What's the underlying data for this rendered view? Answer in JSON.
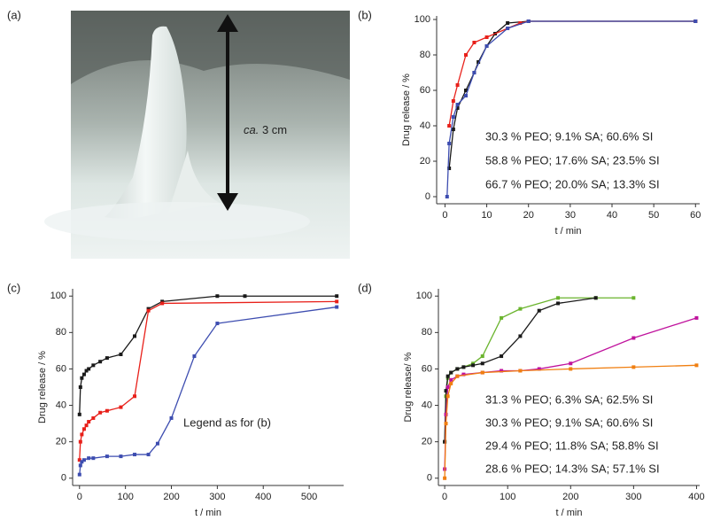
{
  "photo": {
    "label": "(a)",
    "annotation_italic": "ca.",
    "annotation": "3 cm"
  },
  "chart_data": [
    {
      "type": "line",
      "label": "(b)",
      "xlabel": "t / min",
      "ylabel": "Drug release / %",
      "xlim": [
        -2,
        61
      ],
      "ylim": [
        -4,
        102
      ],
      "xticks": [
        0,
        10,
        20,
        30,
        40,
        50,
        60
      ],
      "yticks": [
        0,
        20,
        40,
        60,
        80,
        100
      ],
      "series": [
        {
          "name": "30.3 % PEO; 9.1% SA; 60.6% SI",
          "color": "#1a1a1a",
          "x": [
            1,
            2,
            3,
            5,
            7,
            8,
            10,
            12,
            15,
            20,
            60
          ],
          "values": [
            16,
            38,
            50,
            60,
            70,
            76,
            85,
            92,
            98,
            99,
            99
          ]
        },
        {
          "name": "58.8 % PEO; 17.6% SA; 23.5% SI",
          "color": "#e8201a",
          "x": [
            1,
            2,
            3,
            5,
            7,
            10,
            15,
            18,
            20,
            60
          ],
          "values": [
            40,
            54,
            63,
            80,
            87,
            90,
            95,
            98,
            99,
            99
          ]
        },
        {
          "name": "66.7 % PEO; 20.0% SA; 13.3% SI",
          "color": "#3d4db0",
          "x": [
            0.5,
            1,
            2,
            3,
            5,
            7,
            10,
            15,
            20,
            60
          ],
          "values": [
            0,
            30,
            45,
            52,
            57,
            70,
            85,
            95,
            99,
            99
          ]
        }
      ]
    },
    {
      "type": "line",
      "label": "(c)",
      "xlabel": "t / min",
      "ylabel": "Drug release / %",
      "annotation": "Legend as for (b)",
      "xlim": [
        -15,
        575
      ],
      "ylim": [
        -4,
        104
      ],
      "xticks": [
        0,
        100,
        200,
        300,
        400,
        500
      ],
      "yticks": [
        0,
        20,
        40,
        60,
        80,
        100
      ],
      "series": [
        {
          "color": "#1a1a1a",
          "x": [
            0,
            2,
            5,
            10,
            15,
            20,
            30,
            45,
            60,
            90,
            120,
            150,
            180,
            300,
            360,
            560
          ],
          "values": [
            35,
            50,
            55,
            57,
            59,
            60,
            62,
            64,
            66,
            68,
            78,
            93,
            97,
            100,
            100,
            100
          ]
        },
        {
          "color": "#e8201a",
          "x": [
            0,
            2,
            5,
            10,
            15,
            20,
            30,
            45,
            60,
            90,
            120,
            150,
            180,
            560
          ],
          "values": [
            10,
            20,
            24,
            27,
            29,
            31,
            33,
            36,
            37,
            39,
            45,
            92,
            96,
            97
          ]
        },
        {
          "color": "#3d4db0",
          "x": [
            0,
            2,
            5,
            10,
            20,
            30,
            60,
            90,
            120,
            150,
            170,
            200,
            250,
            300,
            560
          ],
          "values": [
            2,
            7,
            9,
            10,
            11,
            11,
            12,
            12,
            13,
            13,
            19,
            33,
            67,
            85,
            94
          ]
        }
      ]
    },
    {
      "type": "line",
      "label": "(d)",
      "xlabel": "t / min",
      "ylabel": "Drug release/ %",
      "xlim": [
        -10,
        405
      ],
      "ylim": [
        -4,
        104
      ],
      "xticks": [
        0,
        100,
        200,
        300,
        400
      ],
      "yticks": [
        0,
        20,
        40,
        60,
        80,
        100
      ],
      "series": [
        {
          "name": "31.3 % PEO; 6.3% SA; 62.5% SI",
          "color": "#6ab42d",
          "x": [
            0,
            2,
            5,
            10,
            20,
            30,
            45,
            60,
            90,
            120,
            180,
            240,
            300
          ],
          "values": [
            20,
            45,
            55,
            58,
            60,
            61,
            63,
            67,
            88,
            93,
            99,
            99,
            99
          ]
        },
        {
          "name": "30.3 % PEO; 9.1% SA; 60.6% SI",
          "color": "#1a1a1a",
          "x": [
            0,
            2,
            5,
            10,
            20,
            30,
            45,
            60,
            90,
            120,
            150,
            180,
            240
          ],
          "values": [
            20,
            48,
            56,
            58,
            60,
            61,
            62,
            63,
            67,
            78,
            92,
            96,
            99
          ]
        },
        {
          "name": "29.4 % PEO; 11.8% SA; 58.8% SI",
          "color": "#c0139d",
          "x": [
            0,
            2,
            5,
            10,
            20,
            30,
            60,
            90,
            120,
            150,
            200,
            300,
            400
          ],
          "values": [
            5,
            35,
            50,
            54,
            56,
            57,
            58,
            59,
            59,
            60,
            63,
            77,
            88
          ]
        },
        {
          "name": "28.6 % PEO; 14.3% SA; 57.1% SI",
          "color": "#f07f11",
          "x": [
            0,
            2,
            5,
            10,
            20,
            60,
            120,
            200,
            300,
            400
          ],
          "values": [
            0,
            30,
            45,
            52,
            56,
            58,
            59,
            60,
            61,
            62
          ]
        }
      ]
    }
  ]
}
